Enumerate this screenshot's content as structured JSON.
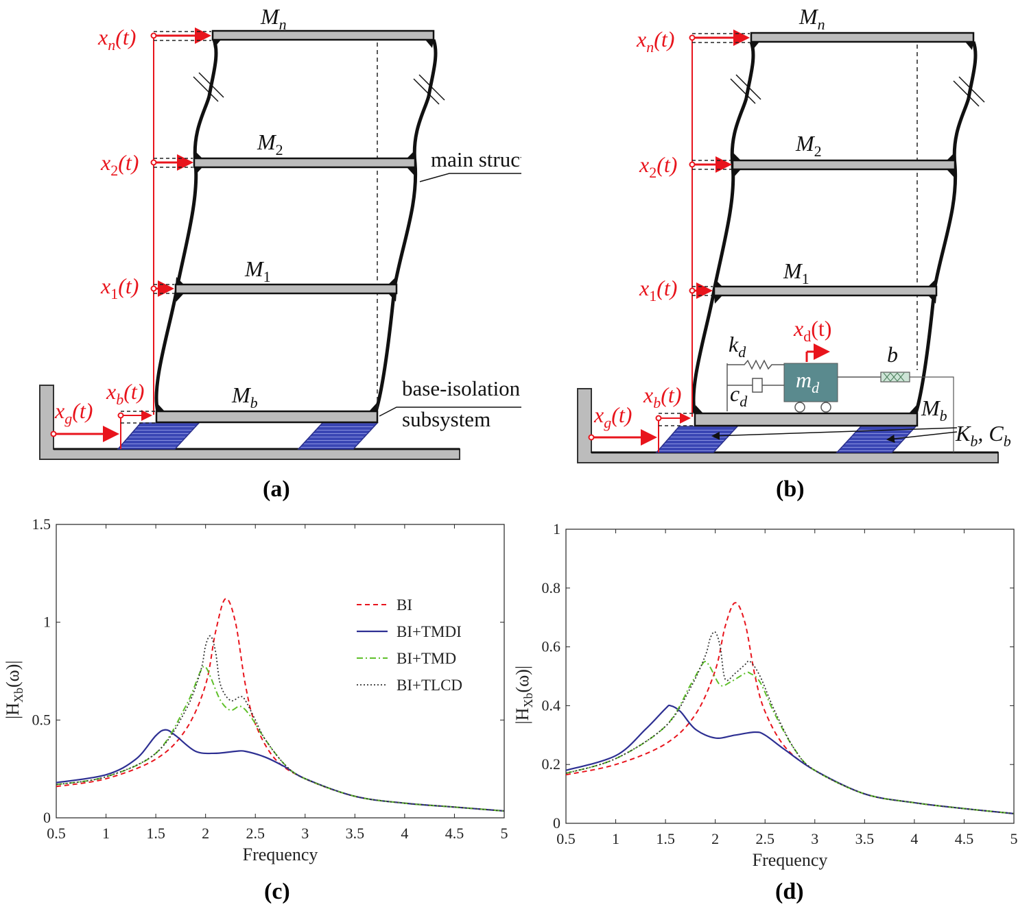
{
  "colors": {
    "red": "#e8141c",
    "blue": "#2d2f92",
    "green": "#5fc02a",
    "gray": "#4a4a4a",
    "slab": "#bcbcbc",
    "damper_mass": "#5a8a8e",
    "pad": "#3a46b4"
  },
  "panel_a": {
    "label": "(a)",
    "masses": {
      "mn": "M",
      "mn_sub": "n",
      "m2": "M",
      "m2_sub": "2",
      "m1": "M",
      "m1_sub": "1",
      "mb": "M",
      "mb_sub": "b"
    },
    "disp": {
      "xn": "x",
      "xn_sub": "n",
      "x2": "x",
      "x2_sub": "2",
      "x1": "x",
      "x1_sub": "1",
      "xb": "x",
      "xb_sub": "b",
      "xg": "x",
      "xg_sub": "g",
      "arg": "(t)"
    },
    "callout_main": "main structure",
    "callout_base_1": "base-isolation",
    "callout_base_2": "subsystem"
  },
  "panel_b": {
    "label": "(b)",
    "masses": {
      "mn": "M",
      "mn_sub": "n",
      "m2": "M",
      "m2_sub": "2",
      "m1": "M",
      "m1_sub": "1",
      "mb": "M",
      "mb_sub": "b"
    },
    "disp": {
      "xn": "x",
      "xn_sub": "n",
      "x2": "x",
      "x2_sub": "2",
      "x1": "x",
      "x1_sub": "1",
      "xb": "x",
      "xb_sub": "b",
      "xg": "x",
      "xg_sub": "g",
      "arg": "(t)",
      "xd": "x",
      "xd_sub": "d",
      "xd_arg": "(t)"
    },
    "kd": "k",
    "kd_sub": "d",
    "cd": "c",
    "cd_sub": "d",
    "md": "m",
    "md_sub": "d",
    "b": "b",
    "kb_cb": "K",
    "kb_sub": "b",
    "cb": ", C",
    "cb_sub": "b"
  },
  "panel_c": {
    "label": "(c)"
  },
  "panel_d": {
    "label": "(d)"
  },
  "chart_data": [
    {
      "type": "line",
      "panel": "(c)",
      "xlabel": "Frequency",
      "ylabel": "|H_Xb(ω)|",
      "ylabel_main": "|H",
      "ylabel_sub": "Xb",
      "ylabel_tail": "(ω)|",
      "xlim": [
        0.5,
        5
      ],
      "ylim": [
        0,
        1.5
      ],
      "xticks": [
        "0.5",
        "1",
        "1.5",
        "2",
        "2.5",
        "3",
        "3.5",
        "4",
        "4.5",
        "5"
      ],
      "yticks": [
        "0",
        "0.5",
        "1",
        "1.5"
      ],
      "legend": [
        "BI",
        "BI+TMDI",
        "BI+TMD",
        "BI+TLCD"
      ],
      "legend_position": "right",
      "series": [
        {
          "name": "BI",
          "color": "#e8141c",
          "style": "dashed",
          "x": [
            0.5,
            1.0,
            1.5,
            1.8,
            2.0,
            2.1,
            2.2,
            2.3,
            2.4,
            2.5,
            2.7,
            3.0,
            3.5,
            4.0,
            4.5,
            5.0
          ],
          "y": [
            0.16,
            0.2,
            0.3,
            0.45,
            0.68,
            0.95,
            1.12,
            1.0,
            0.68,
            0.48,
            0.3,
            0.2,
            0.11,
            0.075,
            0.055,
            0.035
          ]
        },
        {
          "name": "BI+TMDI",
          "color": "#2d2f92",
          "style": "solid",
          "x": [
            0.5,
            1.0,
            1.3,
            1.5,
            1.6,
            1.7,
            1.9,
            2.1,
            2.3,
            2.4,
            2.6,
            2.8,
            3.0,
            3.5,
            4.0,
            4.5,
            5.0
          ],
          "y": [
            0.18,
            0.22,
            0.3,
            0.42,
            0.45,
            0.42,
            0.34,
            0.33,
            0.34,
            0.34,
            0.31,
            0.26,
            0.2,
            0.11,
            0.075,
            0.055,
            0.035
          ]
        },
        {
          "name": "BI+TMD",
          "color": "#5fc02a",
          "style": "dashdot",
          "x": [
            0.5,
            1.0,
            1.5,
            1.8,
            1.95,
            2.0,
            2.05,
            2.15,
            2.25,
            2.35,
            2.45,
            2.6,
            2.8,
            3.0,
            3.5,
            4.0,
            4.5,
            5.0
          ],
          "y": [
            0.17,
            0.21,
            0.33,
            0.57,
            0.75,
            0.77,
            0.72,
            0.6,
            0.55,
            0.57,
            0.52,
            0.4,
            0.27,
            0.2,
            0.11,
            0.075,
            0.055,
            0.035
          ]
        },
        {
          "name": "BI+TLCD",
          "color": "#333333",
          "style": "dotted",
          "x": [
            0.5,
            1.0,
            1.5,
            1.8,
            1.95,
            2.0,
            2.05,
            2.1,
            2.15,
            2.25,
            2.35,
            2.4,
            2.5,
            2.6,
            2.8,
            3.0,
            3.5,
            4.0,
            4.5,
            5.0
          ],
          "y": [
            0.17,
            0.21,
            0.33,
            0.55,
            0.75,
            0.88,
            0.93,
            0.85,
            0.68,
            0.6,
            0.62,
            0.6,
            0.5,
            0.4,
            0.27,
            0.2,
            0.11,
            0.075,
            0.055,
            0.035
          ]
        }
      ]
    },
    {
      "type": "line",
      "panel": "(d)",
      "xlabel": "Frequency",
      "ylabel": "|H_Xb(ω)|",
      "ylabel_main": "|H",
      "ylabel_sub": "Xb",
      "ylabel_tail": "(ω)|",
      "xlim": [
        0.5,
        5
      ],
      "ylim": [
        0,
        1
      ],
      "xticks": [
        "0.5",
        "1",
        "1.5",
        "2",
        "2.5",
        "3",
        "3.5",
        "4",
        "4.5",
        "5"
      ],
      "yticks": [
        "0",
        "0.2",
        "0.4",
        "0.6",
        "0.8",
        "1"
      ],
      "series": [
        {
          "name": "BI",
          "color": "#e8141c",
          "style": "dashed",
          "x": [
            0.5,
            1.0,
            1.5,
            1.8,
            2.0,
            2.1,
            2.2,
            2.3,
            2.4,
            2.5,
            2.7,
            3.0,
            3.5,
            4.0,
            4.5,
            5.0
          ],
          "y": [
            0.165,
            0.2,
            0.27,
            0.37,
            0.52,
            0.67,
            0.75,
            0.68,
            0.5,
            0.38,
            0.26,
            0.18,
            0.1,
            0.07,
            0.05,
            0.033
          ]
        },
        {
          "name": "BI+TMDI",
          "color": "#2d2f92",
          "style": "solid",
          "x": [
            0.5,
            1.0,
            1.3,
            1.5,
            1.55,
            1.65,
            1.8,
            2.0,
            2.2,
            2.4,
            2.5,
            2.7,
            3.0,
            3.5,
            4.0,
            4.5,
            5.0
          ],
          "y": [
            0.18,
            0.23,
            0.32,
            0.39,
            0.4,
            0.38,
            0.32,
            0.29,
            0.3,
            0.31,
            0.3,
            0.25,
            0.18,
            0.1,
            0.07,
            0.05,
            0.033
          ]
        },
        {
          "name": "BI+TMD",
          "color": "#5fc02a",
          "style": "dashdot",
          "x": [
            0.5,
            1.0,
            1.5,
            1.75,
            1.85,
            1.9,
            1.95,
            2.05,
            2.15,
            2.3,
            2.35,
            2.45,
            2.6,
            2.8,
            3.0,
            3.5,
            4.0,
            4.5,
            5.0
          ],
          "y": [
            0.17,
            0.22,
            0.33,
            0.47,
            0.53,
            0.55,
            0.53,
            0.47,
            0.48,
            0.51,
            0.51,
            0.48,
            0.37,
            0.25,
            0.18,
            0.1,
            0.07,
            0.05,
            0.033
          ]
        },
        {
          "name": "BI+TLCD",
          "color": "#333333",
          "style": "dotted",
          "x": [
            0.5,
            1.0,
            1.5,
            1.75,
            1.9,
            1.95,
            2.0,
            2.05,
            2.1,
            2.2,
            2.3,
            2.35,
            2.45,
            2.6,
            2.8,
            3.0,
            3.5,
            4.0,
            4.5,
            5.0
          ],
          "y": [
            0.17,
            0.22,
            0.33,
            0.46,
            0.57,
            0.63,
            0.65,
            0.6,
            0.49,
            0.51,
            0.54,
            0.55,
            0.5,
            0.38,
            0.25,
            0.18,
            0.1,
            0.07,
            0.05,
            0.033
          ]
        }
      ]
    }
  ]
}
